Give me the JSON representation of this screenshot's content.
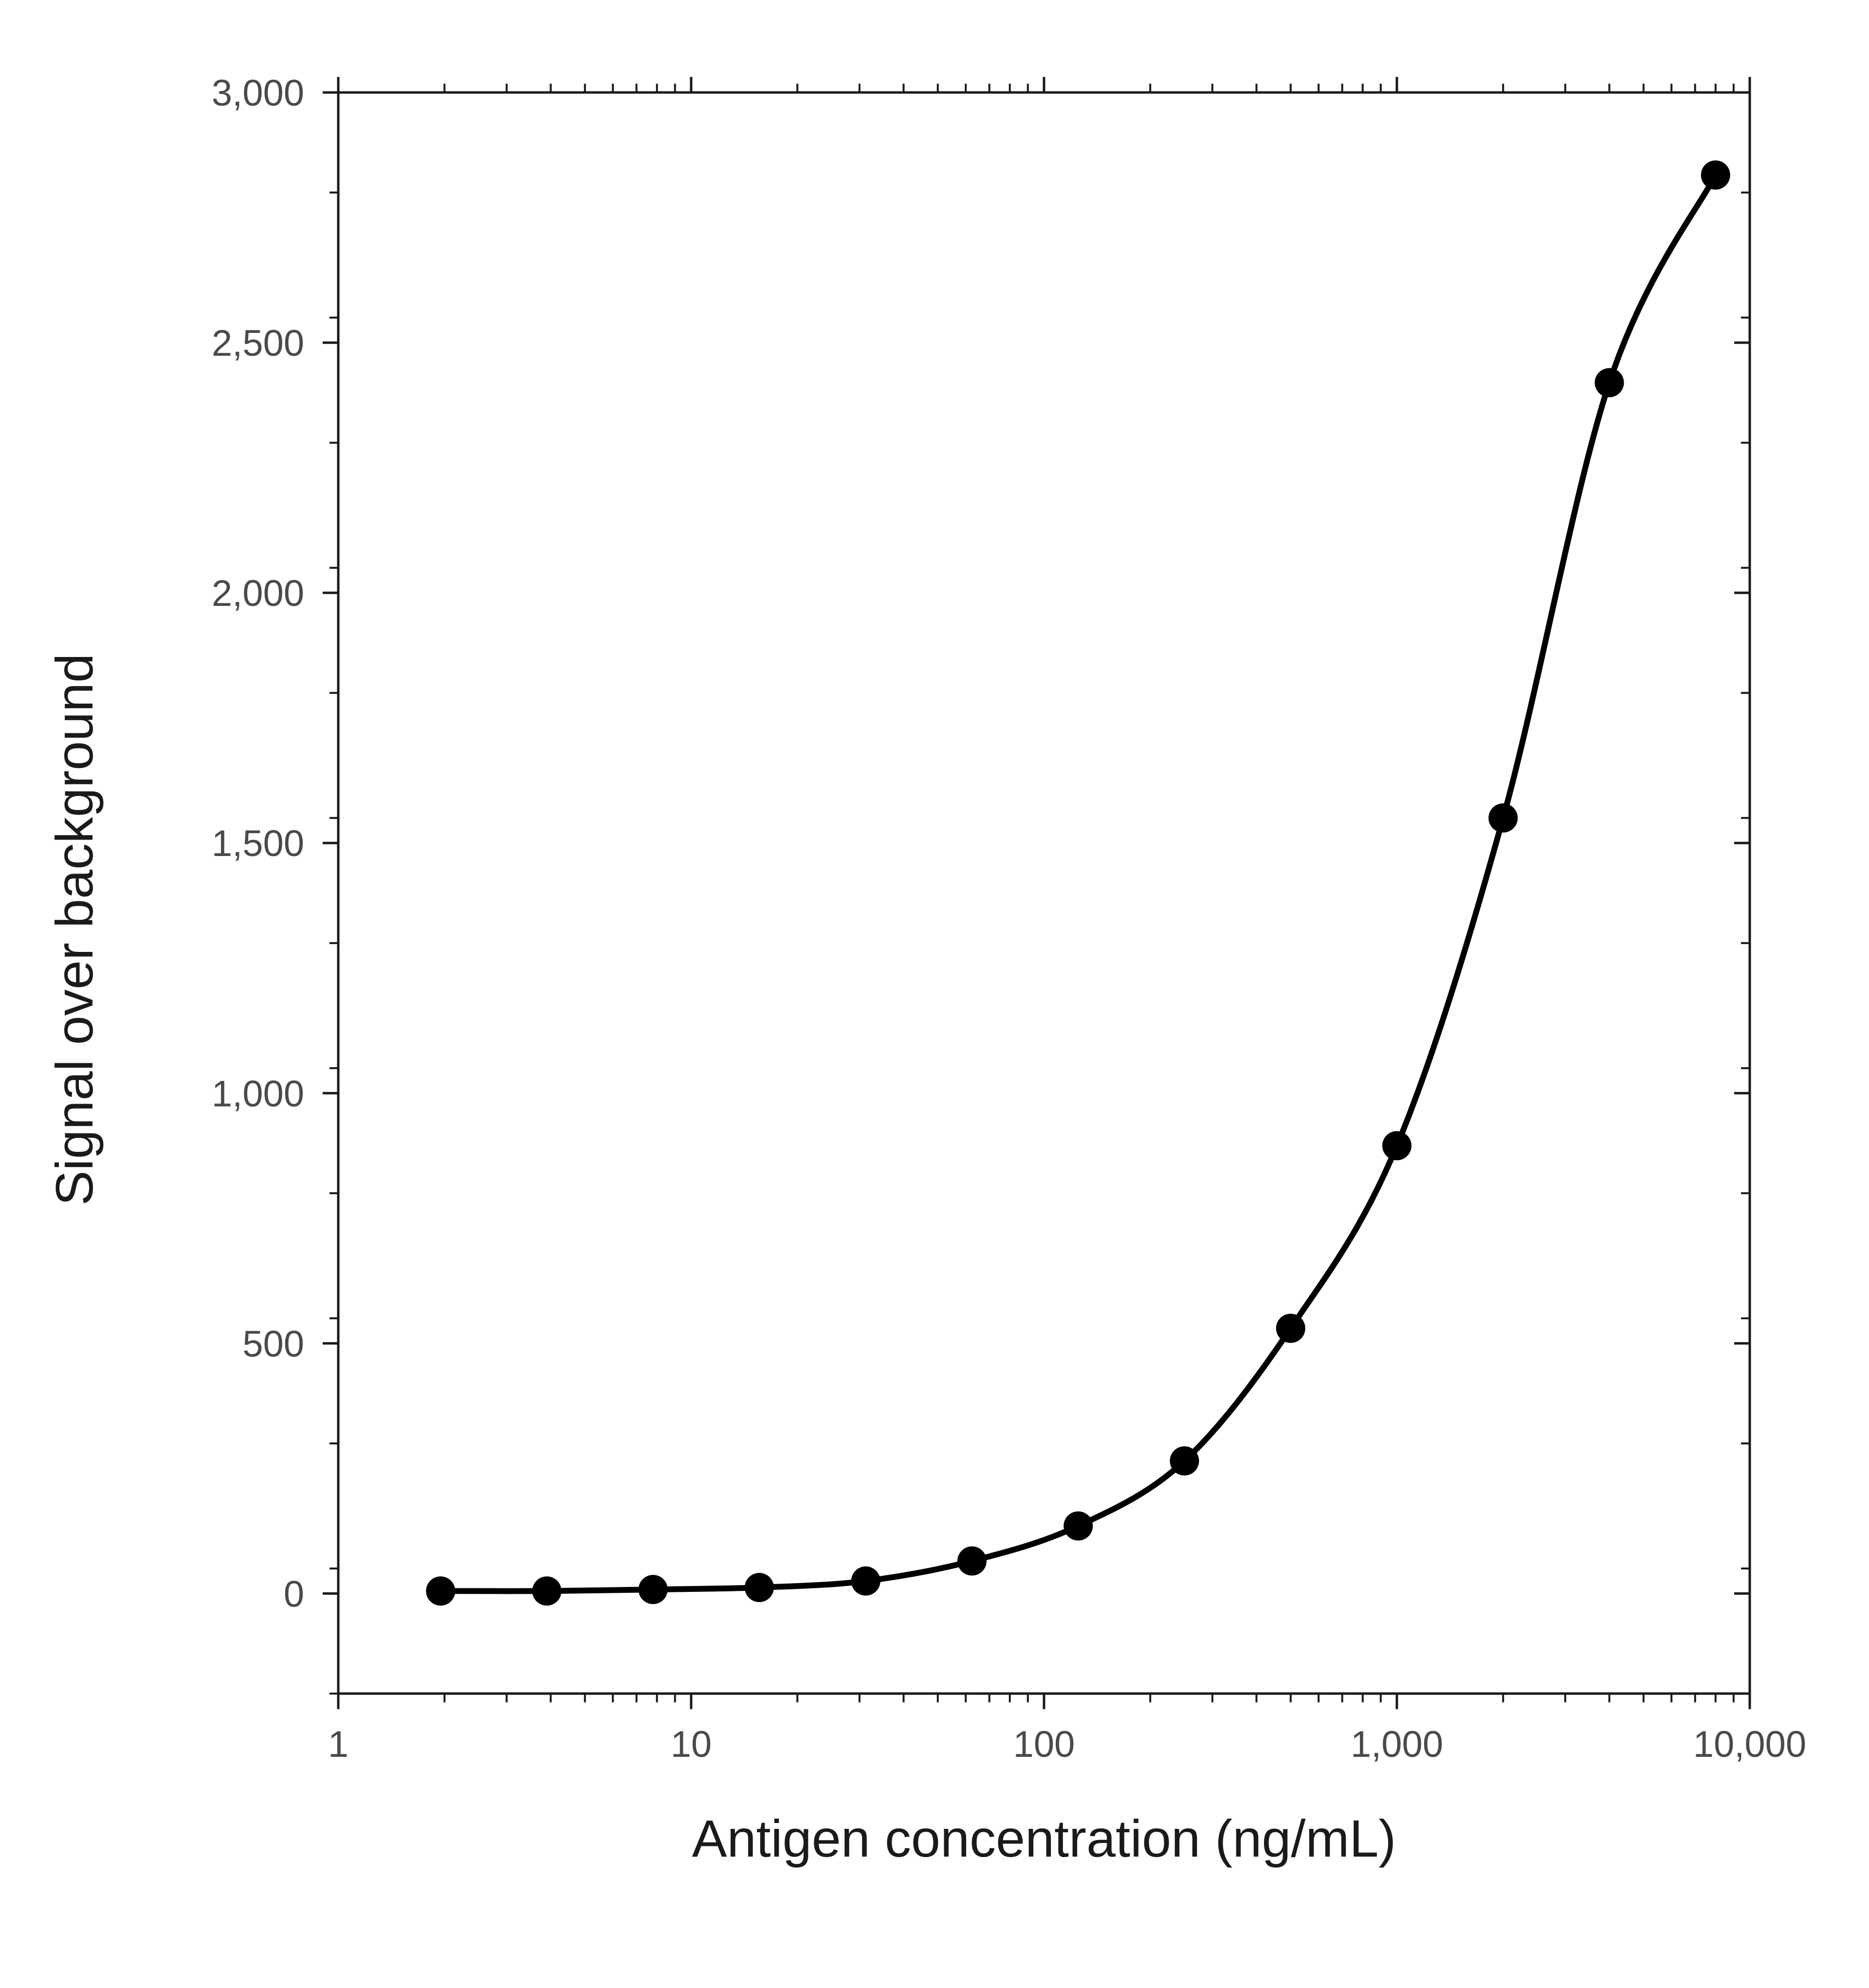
{
  "chart_data": {
    "type": "line",
    "title": "",
    "xlabel": "Antigen concentration (ng/mL)",
    "ylabel": "Signal over background",
    "x_scale": "log",
    "xlim": [
      1,
      10000
    ],
    "ylim": [
      -200,
      3000
    ],
    "x_ticks": [
      {
        "value": 1,
        "label": "1"
      },
      {
        "value": 10,
        "label": "10"
      },
      {
        "value": 100,
        "label": "100"
      },
      {
        "value": 1000,
        "label": "1,000"
      },
      {
        "value": 10000,
        "label": "10,000"
      }
    ],
    "y_ticks": [
      {
        "value": 0,
        "label": "0"
      },
      {
        "value": 500,
        "label": "500"
      },
      {
        "value": 1000,
        "label": "1,000"
      },
      {
        "value": 1500,
        "label": "1,500"
      },
      {
        "value": 2000,
        "label": "2,000"
      },
      {
        "value": 2500,
        "label": "2,500"
      },
      {
        "value": 3000,
        "label": "3,000"
      }
    ],
    "grid": false,
    "legend": "none",
    "series": [
      {
        "color": "#000000",
        "points": [
          {
            "x": 1.95,
            "y": 5
          },
          {
            "x": 3.9,
            "y": 5
          },
          {
            "x": 7.8,
            "y": 8
          },
          {
            "x": 15.6,
            "y": 12
          },
          {
            "x": 31.25,
            "y": 25
          },
          {
            "x": 62.5,
            "y": 65
          },
          {
            "x": 125,
            "y": 135
          },
          {
            "x": 250,
            "y": 265
          },
          {
            "x": 500,
            "y": 530
          },
          {
            "x": 1000,
            "y": 895
          },
          {
            "x": 2000,
            "y": 1550
          },
          {
            "x": 4000,
            "y": 2420
          },
          {
            "x": 8000,
            "y": 2835
          }
        ]
      }
    ]
  }
}
